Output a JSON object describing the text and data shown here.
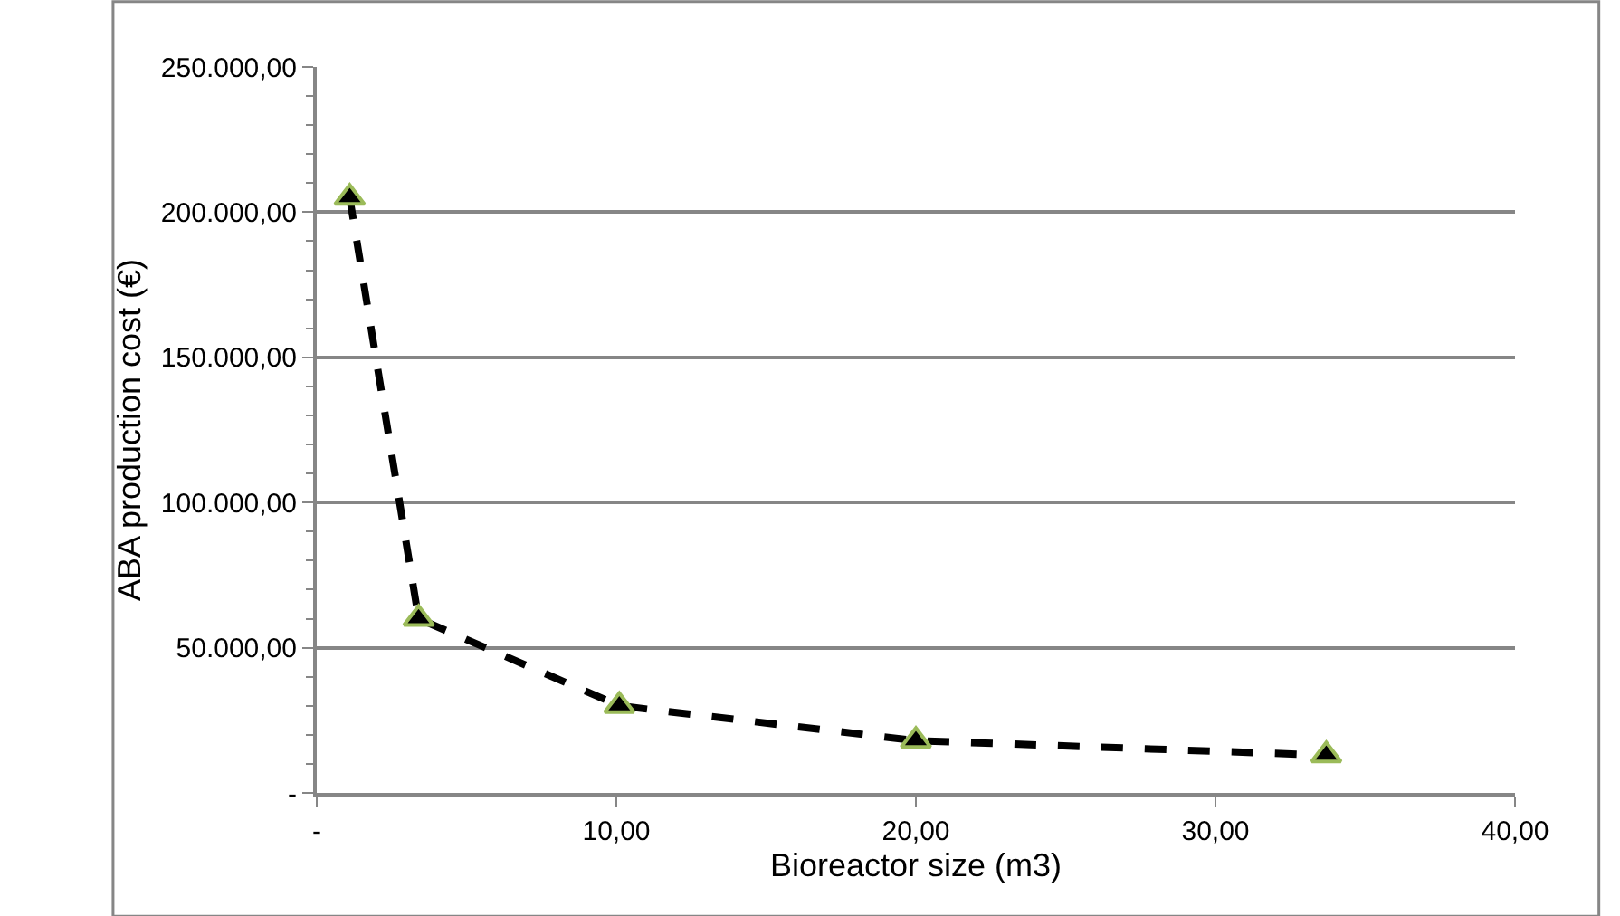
{
  "chart_data": {
    "type": "line",
    "xlabel": "Bioreactor size (m3)",
    "ylabel": "ABA production cost (€)",
    "x": [
      1.1,
      3.4,
      10.1,
      20.0,
      33.7
    ],
    "series": [
      {
        "color": "#000000",
        "values": [
          205000,
          60000,
          30000,
          18000,
          13000
        ]
      }
    ],
    "xlim": [
      0,
      40
    ],
    "xticks": [
      {
        "value": 0,
        "label": "-"
      },
      {
        "value": 10,
        "label": "10,00"
      },
      {
        "value": 20,
        "label": "20,00"
      },
      {
        "value": 30,
        "label": "30,00"
      },
      {
        "value": 40,
        "label": "40,00"
      }
    ],
    "ylim": [
      0,
      250000
    ],
    "yticks": [
      {
        "value": 0,
        "label": "-"
      },
      {
        "value": 10000,
        "label": null
      },
      {
        "value": 20000,
        "label": null
      },
      {
        "value": 30000,
        "label": null
      },
      {
        "value": 40000,
        "label": null
      },
      {
        "value": 50000,
        "label": "50.000,00"
      },
      {
        "value": 60000,
        "label": null
      },
      {
        "value": 70000,
        "label": null
      },
      {
        "value": 80000,
        "label": null
      },
      {
        "value": 90000,
        "label": null
      },
      {
        "value": 100000,
        "label": "100.000,00"
      },
      {
        "value": 110000,
        "label": null
      },
      {
        "value": 120000,
        "label": null
      },
      {
        "value": 130000,
        "label": null
      },
      {
        "value": 140000,
        "label": null
      },
      {
        "value": 150000,
        "label": "150.000,00"
      },
      {
        "value": 160000,
        "label": null
      },
      {
        "value": 170000,
        "label": null
      },
      {
        "value": 180000,
        "label": null
      },
      {
        "value": 190000,
        "label": null
      },
      {
        "value": 200000,
        "label": "200.000,00"
      },
      {
        "value": 210000,
        "label": null
      },
      {
        "value": 220000,
        "label": null
      },
      {
        "value": 230000,
        "label": null
      },
      {
        "value": 240000,
        "label": null
      },
      {
        "value": 250000,
        "label": "250.000,00"
      }
    ],
    "grid": "y",
    "legend": false,
    "marker": "triangle",
    "line_style": "dashed"
  }
}
